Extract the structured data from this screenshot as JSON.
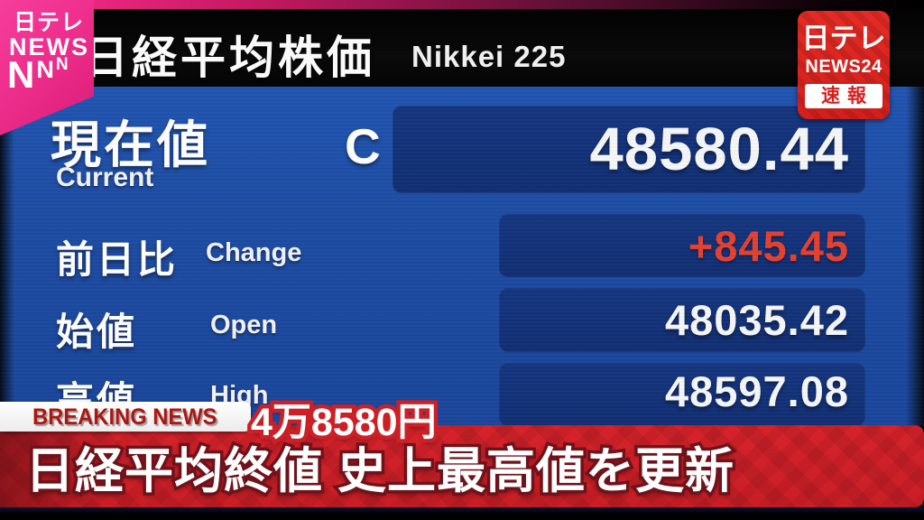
{
  "channel_logo": {
    "brand": "日テレ",
    "news": "NEWS",
    "nnn": [
      "N",
      "N",
      "N"
    ]
  },
  "header": {
    "title_ja": "日経平均株価",
    "title_en": "Nikkei 225"
  },
  "news24_badge": {
    "brand": "日テレ",
    "channel": "NEWS24",
    "flash": "速報"
  },
  "board": {
    "rows": [
      {
        "label_ja": "現在値",
        "label_en": "Current",
        "tick": "C",
        "value": "48580.44"
      },
      {
        "label_ja": "前日比",
        "label_en": "Change",
        "value": "+845.45"
      },
      {
        "label_ja": "始値",
        "label_en": "Open",
        "value": "48035.42"
      },
      {
        "label_ja": "高値",
        "label_en": "High",
        "value": "48597.08"
      }
    ]
  },
  "ticker": {
    "breaking_label": "BREAKING NEWS",
    "price_tag": "4万8580円",
    "headline": "日経平均終値 史上最高値を更新"
  },
  "colors": {
    "board_blue": "#1d4ca3",
    "panel_navy": "#14357f",
    "banner_red": "#d5232b",
    "change_red": "#e5402f",
    "brand_pink": "#ee2e8c",
    "badge_red": "#dd2721",
    "breaking_text_red": "#ad1612"
  }
}
